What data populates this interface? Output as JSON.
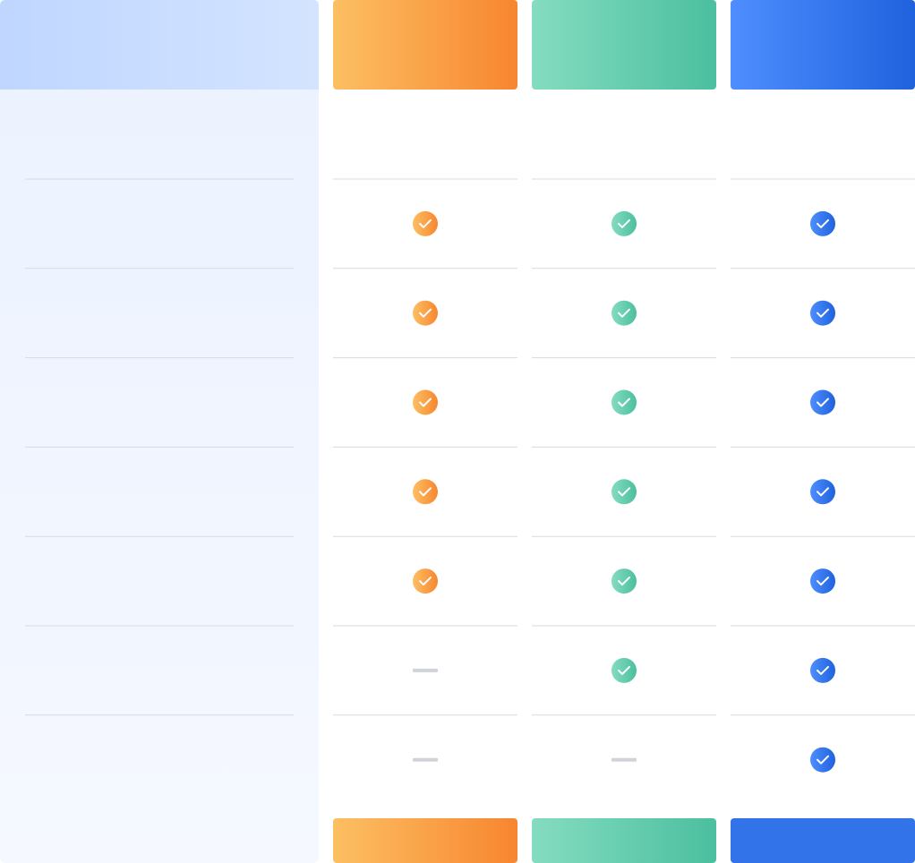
{
  "table": {
    "plans": [
      {
        "header_colors": [
          "#fdbf63",
          "#f7862f"
        ],
        "button_colors": [
          "#fdbf63",
          "#f7862f"
        ]
      },
      {
        "header_colors": [
          "#85dcc0",
          "#4bbf9f"
        ],
        "button_colors": [
          "#85dcc0",
          "#4bbf9f"
        ]
      },
      {
        "header_colors": [
          "#4e8eff",
          "#1f62dd"
        ],
        "button_colors": [
          "#3273ea",
          "#3273ea"
        ]
      }
    ],
    "rows": [
      [
        true,
        true,
        true
      ],
      [
        true,
        true,
        true
      ],
      [
        true,
        true,
        true
      ],
      [
        true,
        true,
        true
      ],
      [
        true,
        true,
        true
      ],
      [
        false,
        true,
        true
      ],
      [
        false,
        false,
        true
      ]
    ]
  }
}
